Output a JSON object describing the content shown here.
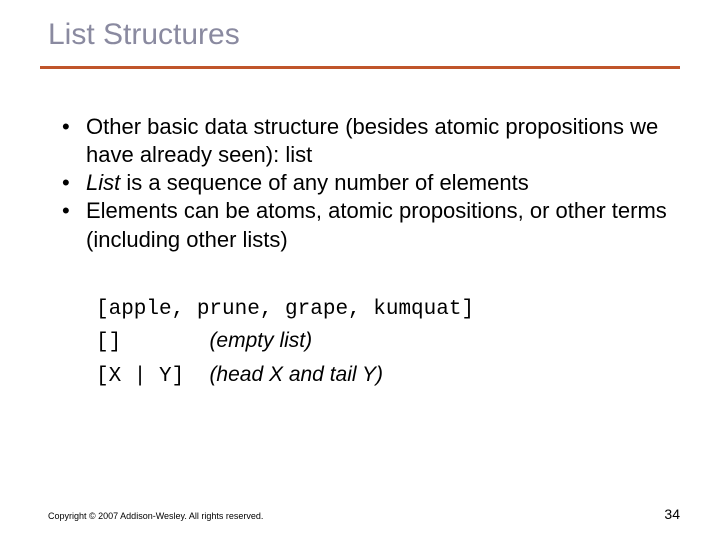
{
  "title": "List Structures",
  "bullets": [
    {
      "pre": "Other basic data structure (besides atomic propositions we have already seen): list"
    },
    {
      "italic": "List",
      "post": " is a sequence of any number of elements"
    },
    {
      "pre": "Elements can be atoms, atomic propositions, or other terms (including other lists)"
    }
  ],
  "examples": {
    "line1": "[apple, prune, grape, kumquat]",
    "line2_code": "[]",
    "line2_desc": "(empty list)",
    "line3_code": "[X | Y]",
    "line3_desc": "(head X and tail Y)"
  },
  "footer": {
    "copyright": "Copyright © 2007 Addison-Wesley. All rights reserved.",
    "page": "34"
  },
  "colors": {
    "title": "#8a8aa0",
    "rule": "#c0552a",
    "background": "#ffffff"
  }
}
